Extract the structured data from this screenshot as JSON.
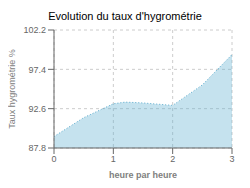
{
  "chart_data": {
    "type": "area",
    "title": "Evolution du taux d'hygrométrie",
    "xlabel": "heure par heure",
    "ylabel": "Taux hygrométrie %",
    "x": [
      0,
      0.5,
      1.0,
      1.2,
      1.5,
      2.0,
      2.5,
      3.0
    ],
    "values": [
      89.2,
      91.5,
      93.2,
      93.4,
      93.3,
      93.0,
      95.5,
      99.2
    ],
    "xlim": [
      0,
      3
    ],
    "ylim": [
      87.8,
      102.2
    ],
    "xticks": [
      0,
      1,
      2,
      3
    ],
    "yticks": [
      87.8,
      92.6,
      97.4,
      102.2
    ],
    "color": "#5aabcd",
    "line_style": "dotted",
    "grid": true
  }
}
